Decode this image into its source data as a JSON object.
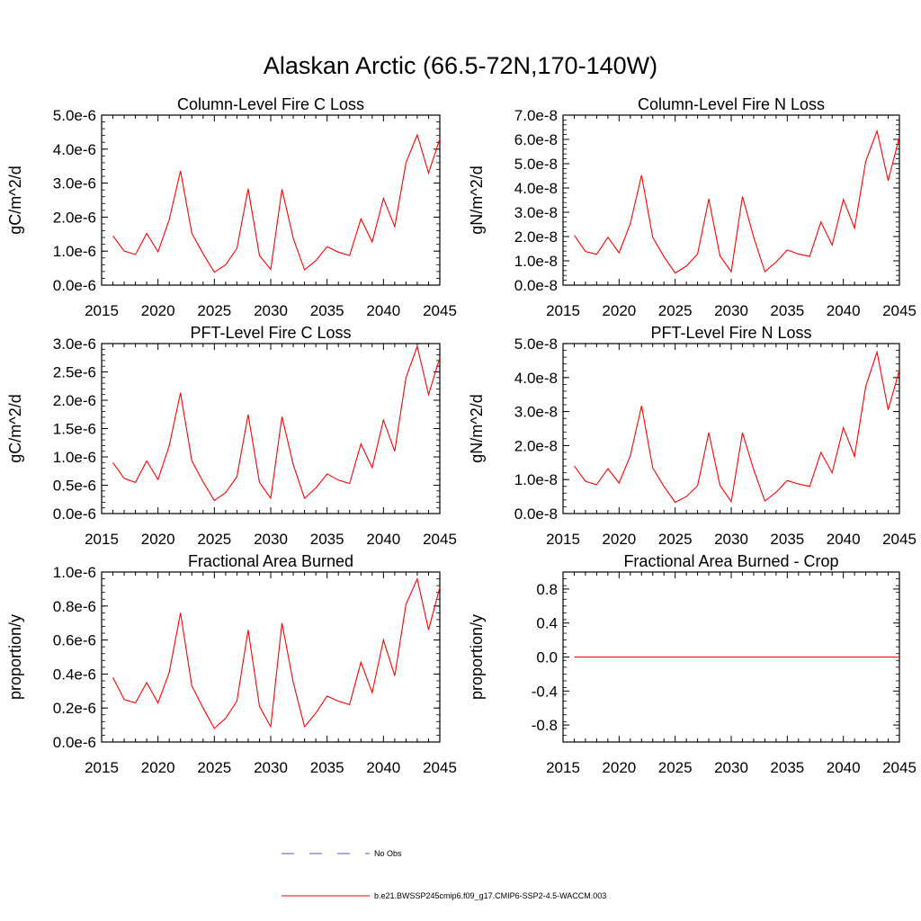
{
  "figure": {
    "title": "Alaskan Arctic (66.5-72N,170-140W)"
  },
  "colors": {
    "model_line": "#ff0000",
    "obs_line": "#5555cc",
    "axis": "#000000"
  },
  "legend": {
    "entries": [
      {
        "label": "No Obs",
        "style": "dashed",
        "color": "#5555cc"
      },
      {
        "label": "b.e21.BWSSP245cmip6.f09_g17.CMIP6-SSP2-4.5-WACCM.003",
        "style": "solid",
        "color": "#ff0000"
      }
    ]
  },
  "chart_data": [
    {
      "type": "line",
      "title": "Column-Level Fire C Loss",
      "ylabel": "gC/m^2/d",
      "xlim": [
        2015,
        2045
      ],
      "ylim": [
        0,
        5e-06
      ],
      "x_ticks": [
        "2015",
        "2020",
        "2025",
        "2030",
        "2035",
        "2040",
        "2045"
      ],
      "y_ticks": [
        {
          "v": 0,
          "t": "0.0e-6"
        },
        {
          "v": 1e-06,
          "t": "1.0e-6"
        },
        {
          "v": 2e-06,
          "t": "2.0e-6"
        },
        {
          "v": 3e-06,
          "t": "3.0e-6"
        },
        {
          "v": 4e-06,
          "t": "4.0e-6"
        },
        {
          "v": 5e-06,
          "t": "5.0e-6"
        }
      ],
      "x": [
        2016,
        2017,
        2018,
        2019,
        2020,
        2021,
        2022,
        2023,
        2024,
        2025,
        2026,
        2027,
        2028,
        2029,
        2030,
        2031,
        2032,
        2033,
        2034,
        2035,
        2036,
        2037,
        2038,
        2039,
        2040,
        2041,
        2042,
        2043,
        2044,
        2045
      ],
      "series": [
        {
          "name": "b.e21.BWSSP245cmip6.f09_g17.CMIP6-SSP2-4.5-WACCM.003",
          "values": [
            1.45e-06,
            1e-06,
            9e-07,
            1.52e-06,
            9.8e-07,
            1.93e-06,
            3.36e-06,
            1.52e-06,
            9.2e-07,
            3.8e-07,
            6e-07,
            1.08e-06,
            2.83e-06,
            8.7e-07,
            4.6e-07,
            2.82e-06,
            1.37e-06,
            4.5e-07,
            7.2e-07,
            1.13e-06,
            9.7e-07,
            8.7e-07,
            1.95e-06,
            1.27e-06,
            2.55e-06,
            1.72e-06,
            3.6e-06,
            4.42e-06,
            3.3e-06,
            4.3e-06
          ]
        }
      ]
    },
    {
      "type": "line",
      "title": "Column-Level Fire N Loss",
      "ylabel": "gN/m^2/d",
      "xlim": [
        2015,
        2045
      ],
      "ylim": [
        0,
        7e-08
      ],
      "x_ticks": [
        "2015",
        "2020",
        "2025",
        "2030",
        "2035",
        "2040",
        "2045"
      ],
      "y_ticks": [
        {
          "v": 0,
          "t": "0.0e-8"
        },
        {
          "v": 1e-08,
          "t": "1.0e-8"
        },
        {
          "v": 2e-08,
          "t": "2.0e-8"
        },
        {
          "v": 3e-08,
          "t": "3.0e-8"
        },
        {
          "v": 4e-08,
          "t": "4.0e-8"
        },
        {
          "v": 5e-08,
          "t": "5.0e-8"
        },
        {
          "v": 6e-08,
          "t": "6.0e-8"
        },
        {
          "v": 7e-08,
          "t": "7.0e-8"
        }
      ],
      "x": [
        2016,
        2017,
        2018,
        2019,
        2020,
        2021,
        2022,
        2023,
        2024,
        2025,
        2026,
        2027,
        2028,
        2029,
        2030,
        2031,
        2032,
        2033,
        2034,
        2035,
        2036,
        2037,
        2038,
        2039,
        2040,
        2041,
        2042,
        2043,
        2044,
        2045
      ],
      "series": [
        {
          "name": "b.e21.BWSSP245cmip6.f09_g17.CMIP6-SSP2-4.5-WACCM.003",
          "values": [
            2.05e-08,
            1.38e-08,
            1.27e-08,
            1.97e-08,
            1.33e-08,
            2.53e-08,
            4.53e-08,
            1.97e-08,
            1.17e-08,
            5e-09,
            7.8e-09,
            1.28e-08,
            3.55e-08,
            1.2e-08,
            5.5e-09,
            3.65e-08,
            1.98e-08,
            5.5e-09,
            9.5e-09,
            1.45e-08,
            1.28e-08,
            1.18e-08,
            2.6e-08,
            1.65e-08,
            3.53e-08,
            2.35e-08,
            5.1e-08,
            6.35e-08,
            4.3e-08,
            6.1e-08
          ]
        }
      ]
    },
    {
      "type": "line",
      "title": "PFT-Level Fire C Loss",
      "ylabel": "gC/m^2/d",
      "xlim": [
        2015,
        2045
      ],
      "ylim": [
        0,
        3e-06
      ],
      "x_ticks": [
        "2015",
        "2020",
        "2025",
        "2030",
        "2035",
        "2040",
        "2045"
      ],
      "y_ticks": [
        {
          "v": 0,
          "t": "0.0e-6"
        },
        {
          "v": 5e-07,
          "t": "0.5e-6"
        },
        {
          "v": 1e-06,
          "t": "1.0e-6"
        },
        {
          "v": 1.5e-06,
          "t": "1.5e-6"
        },
        {
          "v": 2e-06,
          "t": "2.0e-6"
        },
        {
          "v": 2.5e-06,
          "t": "2.5e-6"
        },
        {
          "v": 3e-06,
          "t": "3.0e-6"
        }
      ],
      "x": [
        2016,
        2017,
        2018,
        2019,
        2020,
        2021,
        2022,
        2023,
        2024,
        2025,
        2026,
        2027,
        2028,
        2029,
        2030,
        2031,
        2032,
        2033,
        2034,
        2035,
        2036,
        2037,
        2038,
        2039,
        2040,
        2041,
        2042,
        2043,
        2044,
        2045
      ],
      "series": [
        {
          "name": "b.e21.BWSSP245cmip6.f09_g17.CMIP6-SSP2-4.5-WACCM.003",
          "values": [
            9e-07,
            6.2e-07,
            5.5e-07,
            9.3e-07,
            6e-07,
            1.2e-06,
            2.13e-06,
            9.3e-07,
            5.6e-07,
            2.3e-07,
            3.7e-07,
            6.5e-07,
            1.75e-06,
            5.5e-07,
            2.7e-07,
            1.71e-06,
            8.6e-07,
            2.7e-07,
            4.5e-07,
            7e-07,
            5.9e-07,
            5.3e-07,
            1.23e-06,
            8.1e-07,
            1.65e-06,
            1.1e-06,
            2.4e-06,
            2.95e-06,
            2.1e-06,
            2.75e-06
          ]
        }
      ]
    },
    {
      "type": "line",
      "title": "PFT-Level Fire N Loss",
      "ylabel": "gN/m^2/d",
      "xlim": [
        2015,
        2045
      ],
      "ylim": [
        0,
        5e-08
      ],
      "x_ticks": [
        "2015",
        "2020",
        "2025",
        "2030",
        "2035",
        "2040",
        "2045"
      ],
      "y_ticks": [
        {
          "v": 0,
          "t": "0.0e-8"
        },
        {
          "v": 1e-08,
          "t": "1.0e-8"
        },
        {
          "v": 2e-08,
          "t": "2.0e-8"
        },
        {
          "v": 3e-08,
          "t": "3.0e-8"
        },
        {
          "v": 4e-08,
          "t": "4.0e-8"
        },
        {
          "v": 5e-08,
          "t": "5.0e-8"
        }
      ],
      "x": [
        2016,
        2017,
        2018,
        2019,
        2020,
        2021,
        2022,
        2023,
        2024,
        2025,
        2026,
        2027,
        2028,
        2029,
        2030,
        2031,
        2032,
        2033,
        2034,
        2035,
        2036,
        2037,
        2038,
        2039,
        2040,
        2041,
        2042,
        2043,
        2044,
        2045
      ],
      "series": [
        {
          "name": "b.e21.BWSSP245cmip6.f09_g17.CMIP6-SSP2-4.5-WACCM.003",
          "values": [
            1.4e-08,
            9.5e-09,
            8.5e-09,
            1.32e-08,
            9e-09,
            1.7e-08,
            3.17e-08,
            1.35e-08,
            8e-09,
            3.3e-09,
            5e-09,
            8.2e-09,
            2.38e-08,
            8.3e-09,
            3.5e-09,
            2.38e-08,
            1.3e-08,
            3.7e-09,
            6.3e-09,
            9.7e-09,
            8.7e-09,
            8e-09,
            1.8e-08,
            1.2e-08,
            2.53e-08,
            1.68e-08,
            3.75e-08,
            4.75e-08,
            3.05e-08,
            4.22e-08
          ]
        }
      ]
    },
    {
      "type": "line",
      "title": "Fractional Area Burned",
      "ylabel": "proportion/y",
      "xlim": [
        2015,
        2045
      ],
      "ylim": [
        0,
        1e-06
      ],
      "x_ticks": [
        "2015",
        "2020",
        "2025",
        "2030",
        "2035",
        "2040",
        "2045"
      ],
      "y_ticks": [
        {
          "v": 0,
          "t": "0.0e-6"
        },
        {
          "v": 2e-07,
          "t": "0.2e-6"
        },
        {
          "v": 4e-07,
          "t": "0.4e-6"
        },
        {
          "v": 6e-07,
          "t": "0.6e-6"
        },
        {
          "v": 8e-07,
          "t": "0.8e-6"
        },
        {
          "v": 1e-06,
          "t": "1.0e-6"
        }
      ],
      "x": [
        2016,
        2017,
        2018,
        2019,
        2020,
        2021,
        2022,
        2023,
        2024,
        2025,
        2026,
        2027,
        2028,
        2029,
        2030,
        2031,
        2032,
        2033,
        2034,
        2035,
        2036,
        2037,
        2038,
        2039,
        2040,
        2041,
        2042,
        2043,
        2044,
        2045
      ],
      "series": [
        {
          "name": "b.e21.BWSSP245cmip6.f09_g17.CMIP6-SSP2-4.5-WACCM.003",
          "values": [
            3.8e-07,
            2.5e-07,
            2.3e-07,
            3.5e-07,
            2.3e-07,
            4.1e-07,
            7.6e-07,
            3.3e-07,
            2e-07,
            8e-08,
            1.4e-07,
            2.4e-07,
            6.6e-07,
            2.1e-07,
            9e-08,
            7e-07,
            3.5e-07,
            9e-08,
            1.7e-07,
            2.7e-07,
            2.4e-07,
            2.2e-07,
            4.7e-07,
            2.9e-07,
            6e-07,
            3.9e-07,
            8.1e-07,
            9.6e-07,
            6.6e-07,
            9.1e-07
          ]
        }
      ]
    },
    {
      "type": "line",
      "title": "Fractional Area Burned - Crop",
      "ylabel": "proportion/y",
      "xlim": [
        2015,
        2045
      ],
      "ylim": [
        -1.0,
        1.0
      ],
      "x_ticks": [
        "2015",
        "2020",
        "2025",
        "2030",
        "2035",
        "2040",
        "2045"
      ],
      "y_ticks": [
        {
          "v": -0.8,
          "t": "-0.8"
        },
        {
          "v": -0.4,
          "t": "-0.4"
        },
        {
          "v": 0,
          "t": "0.0"
        },
        {
          "v": 0.4,
          "t": "0.4"
        },
        {
          "v": 0.8,
          "t": "0.8"
        }
      ],
      "x": [
        2016,
        2017,
        2018,
        2019,
        2020,
        2021,
        2022,
        2023,
        2024,
        2025,
        2026,
        2027,
        2028,
        2029,
        2030,
        2031,
        2032,
        2033,
        2034,
        2035,
        2036,
        2037,
        2038,
        2039,
        2040,
        2041,
        2042,
        2043,
        2044,
        2045
      ],
      "series": [
        {
          "name": "b.e21.BWSSP245cmip6.f09_g17.CMIP6-SSP2-4.5-WACCM.003",
          "values": [
            0,
            0,
            0,
            0,
            0,
            0,
            0,
            0,
            0,
            0,
            0,
            0,
            0,
            0,
            0,
            0,
            0,
            0,
            0,
            0,
            0,
            0,
            0,
            0,
            0,
            0,
            0,
            0,
            0,
            0
          ]
        }
      ]
    }
  ]
}
